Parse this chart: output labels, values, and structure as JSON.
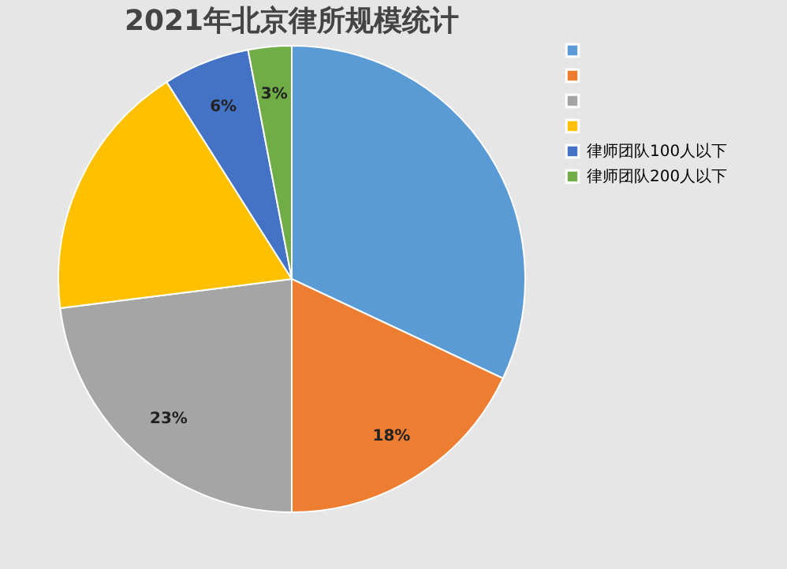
{
  "chart_data": {
    "type": "pie",
    "title": "2021年北京律所规模统计",
    "categories": [
      null,
      null,
      null,
      null,
      "律师团队100人以下",
      "律师团队200人以下"
    ],
    "values": [
      32,
      18,
      23,
      18,
      6,
      3
    ],
    "colors": [
      "#5b9bd5",
      "#ed7d31",
      "#a5a5a5",
      "#ffc000",
      "#4472c4",
      "#70ad47"
    ],
    "value_labels": [
      null,
      "18%",
      "23%",
      null,
      "6%",
      "3%"
    ],
    "legend": "right"
  }
}
